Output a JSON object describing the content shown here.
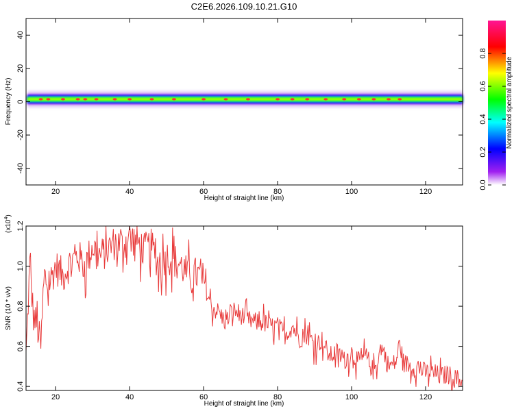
{
  "title": "C2E6.2026.109.10.21.G10",
  "colors": {
    "snr_line": "#e83a3a",
    "axis": "#000000",
    "colormap": [
      "#ffffff",
      "#a020f0",
      "#0000ff",
      "#00ffff",
      "#00ff00",
      "#ffff00",
      "#ff0000",
      "#ff1493"
    ]
  },
  "chart_data": [
    {
      "type": "heatmap",
      "xlabel": "Height of straight line (km)",
      "ylabel": "Frequency (Hz)",
      "xlim": [
        12,
        130
      ],
      "ylim": [
        -50,
        50
      ],
      "x_ticks": [
        20,
        40,
        60,
        80,
        100,
        120
      ],
      "x_tick_labels": [
        "20",
        "40",
        "60",
        "80",
        "100",
        "120"
      ],
      "y_ticks": [
        -40,
        -20,
        0,
        20,
        40
      ],
      "y_tick_labels": [
        "-40",
        "-20",
        "0",
        "20",
        "40"
      ],
      "colorbar": {
        "label": "Normalized spectral amplitude",
        "range": [
          0,
          1
        ],
        "ticks": [
          0.0,
          0.2,
          0.4,
          0.6,
          0.8
        ],
        "tick_labels": [
          "0.0",
          "0.2",
          "0.4",
          "0.6",
          "0.8"
        ]
      },
      "band": {
        "center_hz": 1.5,
        "core_halfwidth_hz": 1.2,
        "outer_halfwidth_hz": 3.0,
        "peak_heights_km": [
          16,
          18,
          22,
          26,
          28,
          31,
          36,
          40,
          46,
          52,
          60,
          66,
          72,
          80,
          84,
          88,
          93,
          98,
          102,
          106,
          110,
          113
        ]
      }
    },
    {
      "type": "line",
      "xlabel": "Height of straight line (km)",
      "ylabel": "SNR (10 * v/v)",
      "y_multiplier": "(x10",
      "y_multiplier_exp": "4",
      "y_multiplier_close": ")",
      "xlim": [
        12,
        130
      ],
      "ylim": [
        0.38,
        1.2
      ],
      "x_ticks": [
        20,
        40,
        60,
        80,
        100,
        120
      ],
      "x_tick_labels": [
        "20",
        "40",
        "60",
        "80",
        "100",
        "120"
      ],
      "y_ticks": [
        0.4,
        0.6,
        0.8,
        1.0,
        1.2
      ],
      "y_tick_labels": [
        "0.4",
        "0.6",
        "0.8",
        "1.0",
        "1.2"
      ],
      "series": [
        {
          "x": [
            12,
            13,
            14,
            15,
            16,
            17,
            18,
            20,
            22,
            24,
            26,
            28,
            30,
            32,
            34,
            36,
            38,
            40,
            42,
            44,
            46,
            48,
            50,
            52,
            54,
            56,
            58,
            60,
            62,
            64,
            66,
            68,
            70,
            72,
            74,
            76,
            78,
            80,
            82,
            84,
            86,
            88,
            90,
            92,
            94,
            96,
            98,
            100,
            102,
            104,
            106,
            108,
            110,
            112,
            113,
            114,
            116,
            118,
            120,
            122,
            124,
            126,
            128,
            130
          ],
          "y": [
            0.55,
            1.0,
            0.75,
            0.7,
            0.6,
            0.95,
            0.9,
            1.0,
            0.95,
            1.02,
            1.05,
            1.0,
            1.1,
            1.05,
            1.08,
            1.12,
            1.1,
            1.15,
            1.12,
            1.08,
            1.1,
            1.0,
            1.05,
            1.03,
            1.0,
            0.95,
            0.96,
            0.93,
            0.8,
            0.77,
            0.72,
            0.78,
            0.76,
            0.73,
            0.72,
            0.72,
            0.7,
            0.7,
            0.66,
            0.7,
            0.64,
            0.66,
            0.61,
            0.63,
            0.55,
            0.57,
            0.53,
            0.57,
            0.52,
            0.55,
            0.47,
            0.6,
            0.5,
            0.52,
            0.62,
            0.52,
            0.5,
            0.49,
            0.47,
            0.47,
            0.45,
            0.46,
            0.44,
            0.43
          ]
        }
      ]
    }
  ]
}
